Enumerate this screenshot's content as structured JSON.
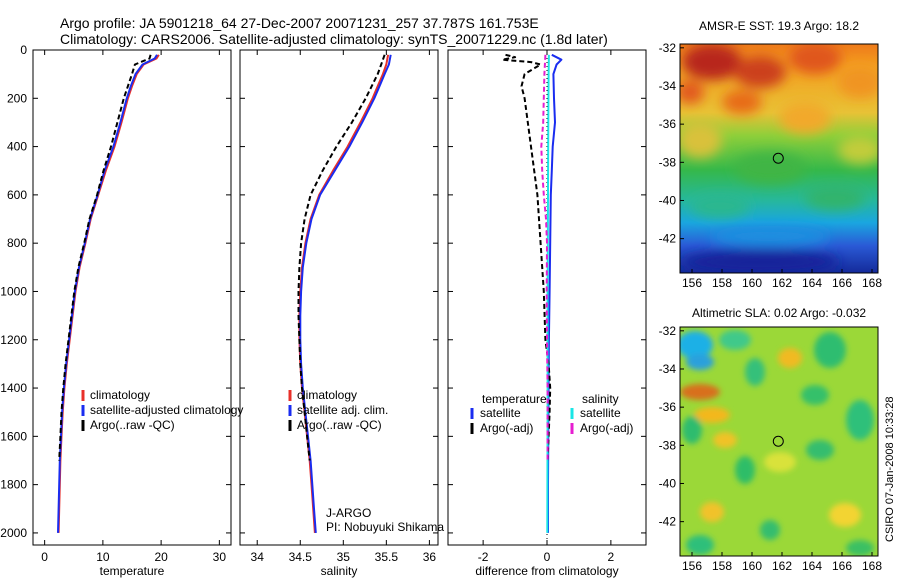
{
  "header": {
    "line1": "Argo profile: JA 5901218_64 27-Dec-2007 20071231_257 37.787S 161.753E",
    "line2": "Climatology: CARS2006. Satellite-adjusted climatology: synTS_20071229.nc (1.8d later)"
  },
  "side_label": "CSIRO 07-Jan-2008 10:33:28",
  "colors": {
    "climatology": "#e8302a",
    "satellite": "#1a2cf0",
    "argo": "#000000",
    "salinity_satellite": "#19e6e6",
    "salinity_argo": "#e61ed0"
  },
  "chart_data": [
    {
      "type": "line",
      "id": "temperature-profile",
      "xlabel": "temperature",
      "xlim": [
        -2,
        32
      ],
      "xticks": [
        0,
        10,
        20,
        30
      ],
      "ylim": [
        0,
        2050
      ],
      "yticks": [
        0,
        200,
        400,
        600,
        800,
        1000,
        1200,
        1400,
        1600,
        1800,
        2000
      ],
      "y_reversed": true,
      "legend": [
        "climatology",
        "satellite-adjusted climatology",
        "Argo(..raw -QC)"
      ],
      "series": [
        {
          "name": "climatology",
          "color": "#e8302a",
          "dash": "",
          "points": [
            [
              19.6,
              20
            ],
            [
              19.2,
              35
            ],
            [
              17.0,
              60
            ],
            [
              15.8,
              100
            ],
            [
              15.0,
              150
            ],
            [
              14.3,
              200
            ],
            [
              13.2,
              300
            ],
            [
              12.0,
              400
            ],
            [
              10.5,
              500
            ],
            [
              9.2,
              600
            ],
            [
              7.9,
              700
            ],
            [
              7.0,
              800
            ],
            [
              6.0,
              900
            ],
            [
              5.3,
              1000
            ],
            [
              4.8,
              1100
            ],
            [
              4.3,
              1200
            ],
            [
              3.8,
              1300
            ],
            [
              3.4,
              1400
            ],
            [
              3.1,
              1500
            ],
            [
              2.9,
              1600
            ],
            [
              2.7,
              1700
            ],
            [
              2.6,
              1800
            ],
            [
              2.5,
              1900
            ],
            [
              2.4,
              2000
            ]
          ]
        },
        {
          "name": "satellite-adjusted climatology",
          "color": "#1a2cf0",
          "dash": "",
          "points": [
            [
              19.3,
              20
            ],
            [
              18.9,
              35
            ],
            [
              16.8,
              60
            ],
            [
              15.6,
              100
            ],
            [
              14.8,
              150
            ],
            [
              14.1,
              200
            ],
            [
              13.0,
              300
            ],
            [
              11.8,
              400
            ],
            [
              10.3,
              500
            ],
            [
              9.1,
              600
            ],
            [
              7.8,
              700
            ],
            [
              6.9,
              800
            ],
            [
              5.9,
              900
            ],
            [
              5.2,
              1000
            ],
            [
              4.7,
              1100
            ],
            [
              4.2,
              1200
            ],
            [
              3.7,
              1300
            ],
            [
              3.3,
              1400
            ],
            [
              3.0,
              1500
            ],
            [
              2.8,
              1600
            ],
            [
              2.6,
              1700
            ],
            [
              2.5,
              1800
            ],
            [
              2.4,
              1900
            ],
            [
              2.3,
              2000
            ]
          ]
        },
        {
          "name": "Argo(..raw -QC)",
          "color": "#000000",
          "dash": "5,3",
          "points": [
            [
              18.2,
              20
            ],
            [
              18.0,
              35
            ],
            [
              15.5,
              60
            ],
            [
              15.0,
              100
            ],
            [
              14.3,
              150
            ],
            [
              13.6,
              200
            ],
            [
              12.5,
              300
            ],
            [
              11.4,
              400
            ],
            [
              10.1,
              500
            ],
            [
              9.0,
              600
            ],
            [
              7.7,
              700
            ],
            [
              6.8,
              800
            ],
            [
              5.8,
              900
            ],
            [
              5.1,
              1000
            ],
            [
              4.6,
              1100
            ],
            [
              4.1,
              1200
            ],
            [
              3.6,
              1300
            ],
            [
              3.2,
              1400
            ],
            [
              2.9,
              1500
            ],
            [
              2.7,
              1600
            ],
            [
              2.5,
              1700
            ]
          ]
        }
      ]
    },
    {
      "type": "line",
      "id": "salinity-profile",
      "xlabel": "salinity",
      "xlim": [
        33.8,
        36.1
      ],
      "xticks": [
        34,
        34.5,
        35,
        35.5,
        36
      ],
      "ylim": [
        0,
        2050
      ],
      "y_reversed": true,
      "legend": [
        "climatology",
        "satellite adj. clim.",
        "Argo(..raw -QC)"
      ],
      "annotation": [
        "J-ARGO",
        "PI: Nobuyuki Shikama"
      ],
      "series": [
        {
          "name": "climatology",
          "color": "#e8302a",
          "dash": "",
          "points": [
            [
              35.52,
              20
            ],
            [
              35.5,
              60
            ],
            [
              35.46,
              100
            ],
            [
              35.4,
              150
            ],
            [
              35.34,
              200
            ],
            [
              35.2,
              300
            ],
            [
              35.05,
              400
            ],
            [
              34.88,
              500
            ],
            [
              34.72,
              600
            ],
            [
              34.62,
              700
            ],
            [
              34.56,
              800
            ],
            [
              34.52,
              900
            ],
            [
              34.5,
              1000
            ],
            [
              34.49,
              1100
            ],
            [
              34.49,
              1200
            ],
            [
              34.5,
              1300
            ],
            [
              34.52,
              1400
            ],
            [
              34.55,
              1500
            ],
            [
              34.58,
              1600
            ],
            [
              34.61,
              1700
            ],
            [
              34.63,
              1800
            ],
            [
              34.65,
              1900
            ],
            [
              34.67,
              2000
            ]
          ]
        },
        {
          "name": "satellite adj. clim.",
          "color": "#1a2cf0",
          "dash": "",
          "points": [
            [
              35.55,
              20
            ],
            [
              35.53,
              60
            ],
            [
              35.48,
              100
            ],
            [
              35.42,
              150
            ],
            [
              35.36,
              200
            ],
            [
              35.22,
              300
            ],
            [
              35.07,
              400
            ],
            [
              34.9,
              500
            ],
            [
              34.73,
              600
            ],
            [
              34.63,
              700
            ],
            [
              34.57,
              800
            ],
            [
              34.53,
              900
            ],
            [
              34.51,
              1000
            ],
            [
              34.5,
              1100
            ],
            [
              34.5,
              1200
            ],
            [
              34.51,
              1300
            ],
            [
              34.53,
              1400
            ],
            [
              34.56,
              1500
            ],
            [
              34.59,
              1600
            ],
            [
              34.62,
              1700
            ],
            [
              34.64,
              1800
            ],
            [
              34.66,
              1900
            ],
            [
              34.68,
              2000
            ]
          ]
        },
        {
          "name": "Argo(..raw -QC)",
          "color": "#000000",
          "dash": "5,3",
          "points": [
            [
              35.48,
              20
            ],
            [
              35.44,
              60
            ],
            [
              35.4,
              100
            ],
            [
              35.33,
              150
            ],
            [
              35.26,
              200
            ],
            [
              35.1,
              300
            ],
            [
              34.92,
              400
            ],
            [
              34.76,
              500
            ],
            [
              34.62,
              600
            ],
            [
              34.55,
              700
            ],
            [
              34.51,
              800
            ],
            [
              34.49,
              900
            ],
            [
              34.48,
              1000
            ],
            [
              34.48,
              1100
            ],
            [
              34.49,
              1200
            ],
            [
              34.5,
              1300
            ],
            [
              34.52,
              1400
            ],
            [
              34.55,
              1500
            ],
            [
              34.58,
              1600
            ],
            [
              34.61,
              1700
            ]
          ]
        }
      ]
    },
    {
      "type": "line",
      "id": "difference-profile",
      "xlabel": "difference from climatology",
      "xlim": [
        -3.1,
        3.1
      ],
      "xticks": [
        -2,
        0,
        2
      ],
      "ylim": [
        0,
        2050
      ],
      "y_reversed": true,
      "legend_groups": [
        {
          "title": "temperature",
          "items": [
            {
              "label": "satellite",
              "color": "#1a2cf0"
            },
            {
              "label": "Argo(-adj)",
              "color": "#000000"
            }
          ]
        },
        {
          "title": "salinity",
          "items": [
            {
              "label": "satellite",
              "color": "#19e6e6"
            },
            {
              "label": "Argo(-adj)",
              "color": "#e61ed0"
            }
          ]
        }
      ],
      "series": [
        {
          "name": "temperature satellite",
          "color": "#1a2cf0",
          "dash": "",
          "points": [
            [
              0.15,
              20
            ],
            [
              0.45,
              40
            ],
            [
              0.3,
              60
            ],
            [
              0.2,
              100
            ],
            [
              0.22,
              200
            ],
            [
              0.25,
              300
            ],
            [
              0.18,
              400
            ],
            [
              0.15,
              500
            ],
            [
              0.12,
              600
            ],
            [
              0.1,
              800
            ],
            [
              0.08,
              1000
            ],
            [
              0.06,
              1200
            ],
            [
              0.05,
              1400
            ],
            [
              0.04,
              1600
            ],
            [
              0.03,
              1800
            ],
            [
              0.03,
              2000
            ]
          ]
        },
        {
          "name": "temperature Argo(-adj)",
          "color": "#000000",
          "dash": "5,3",
          "points": [
            [
              -1.3,
              20
            ],
            [
              -1.0,
              30
            ],
            [
              -1.4,
              40
            ],
            [
              -0.5,
              50
            ],
            [
              -0.2,
              60
            ],
            [
              -0.7,
              100
            ],
            [
              -0.8,
              150
            ],
            [
              -0.7,
              200
            ],
            [
              -0.6,
              300
            ],
            [
              -0.5,
              400
            ],
            [
              -0.4,
              500
            ],
            [
              -0.3,
              600
            ],
            [
              -0.2,
              800
            ],
            [
              -0.1,
              1000
            ],
            [
              -0.05,
              1200
            ],
            [
              0.05,
              1300
            ],
            [
              0.1,
              1400
            ],
            [
              0.08,
              1500
            ],
            [
              0.05,
              1600
            ],
            [
              0.02,
              1700
            ]
          ]
        },
        {
          "name": "salinity satellite",
          "color": "#19e6e6",
          "dash": "",
          "points": [
            [
              0.06,
              20
            ],
            [
              0.05,
              100
            ],
            [
              0.04,
              300
            ],
            [
              0.03,
              600
            ],
            [
              0.02,
              1000
            ],
            [
              0.02,
              1500
            ],
            [
              0.01,
              2000
            ]
          ]
        },
        {
          "name": "salinity Argo(-adj)",
          "color": "#e61ed0",
          "dash": "5,3",
          "points": [
            [
              -0.05,
              20
            ],
            [
              -0.08,
              100
            ],
            [
              -0.12,
              300
            ],
            [
              -0.18,
              400
            ],
            [
              -0.15,
              500
            ],
            [
              -0.1,
              600
            ],
            [
              -0.03,
              700
            ],
            [
              0.0,
              800
            ],
            [
              -0.01,
              1000
            ],
            [
              0.0,
              1200
            ],
            [
              0.02,
              1400
            ],
            [
              0.02,
              1600
            ],
            [
              0.02,
              1700
            ]
          ]
        }
      ]
    },
    {
      "type": "heatmap",
      "id": "sst-map",
      "title": "AMSR-E SST: 19.3 Argo: 18.2",
      "xlim": [
        155.2,
        168.4
      ],
      "ylim": [
        -43.8,
        -31.8
      ],
      "xticks": [
        156,
        158,
        160,
        162,
        164,
        166,
        168
      ],
      "yticks": [
        -32,
        -34,
        -36,
        -38,
        -40,
        -42
      ],
      "marker": [
        161.753,
        -37.787
      ]
    },
    {
      "type": "heatmap",
      "id": "sla-map",
      "title": "Altimetric SLA: 0.02 Argo: -0.032",
      "xlim": [
        155.2,
        168.4
      ],
      "ylim": [
        -43.8,
        -31.8
      ],
      "xticks": [
        156,
        158,
        160,
        162,
        164,
        166,
        168
      ],
      "yticks": [
        -32,
        -34,
        -36,
        -38,
        -40,
        -42
      ],
      "marker": [
        161.753,
        -37.787
      ]
    }
  ]
}
